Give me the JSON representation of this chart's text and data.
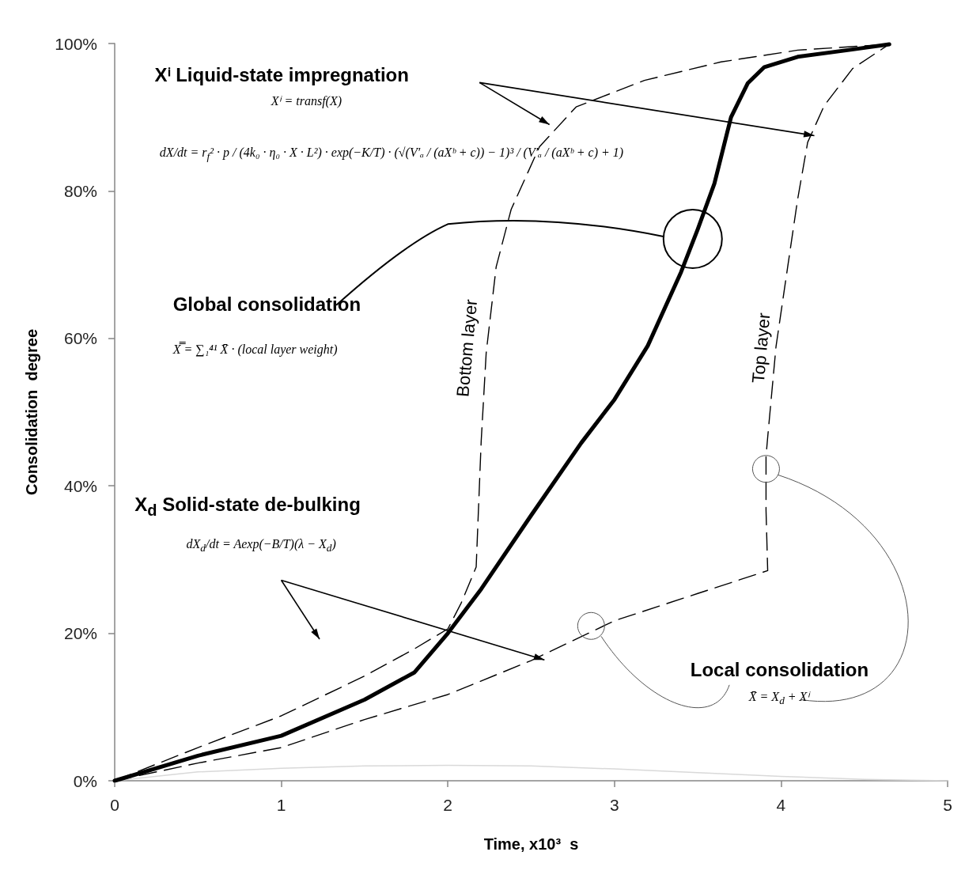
{
  "chart_data": {
    "type": "line",
    "xlabel": "Time, x10³  s",
    "ylabel": "Consolidation  degree",
    "xlim": [
      0,
      5
    ],
    "xticks": [
      0,
      1,
      2,
      3,
      4,
      5
    ],
    "ylim": [
      0,
      100
    ],
    "yticks": [
      {
        "value": 0,
        "label": "0%"
      },
      {
        "value": 20,
        "label": "20%"
      },
      {
        "value": 40,
        "label": "40%"
      },
      {
        "value": 60,
        "label": "60%"
      },
      {
        "value": 80,
        "label": "80%"
      },
      {
        "value": 100,
        "label": "100%"
      }
    ],
    "grid": false,
    "legend": false,
    "marker": "none",
    "series": [
      {
        "color": "#d9d9d9",
        "line_style": "solid",
        "x": [
          0,
          0.5,
          1,
          1.5,
          2,
          2.5,
          3,
          3.5,
          4,
          4.5,
          5
        ],
        "values": [
          0,
          1.2,
          1.7,
          2.0,
          2.1,
          2.0,
          1.6,
          1.1,
          0.6,
          0.2,
          0
        ]
      },
      {
        "name": "Bottom layer",
        "color": "#000000",
        "line_style": "dashed",
        "x": [
          0,
          0.5,
          1,
          1.5,
          1.8,
          2.0,
          2.08,
          2.17,
          2.2,
          2.23,
          2.29,
          2.38,
          2.55,
          2.77,
          3.18,
          3.64,
          4.1,
          4.65
        ],
        "values": [
          0,
          4.5,
          8.8,
          14.2,
          17.9,
          20.6,
          24.1,
          29,
          46,
          58,
          69.7,
          77.5,
          86,
          91.4,
          95,
          97.5,
          99.1,
          99.9
        ]
      },
      {
        "name": "Top layer",
        "color": "#000000",
        "line_style": "dashed",
        "x": [
          0,
          0.5,
          1,
          1.5,
          2,
          2.5,
          3,
          3.5,
          3.92,
          3.91,
          3.91,
          3.92,
          3.97,
          4.04,
          4.1,
          4.16,
          4.26,
          4.43,
          4.65
        ],
        "values": [
          0,
          2.4,
          4.5,
          8.3,
          11.7,
          16.3,
          21.7,
          25.4,
          28.5,
          36.7,
          44,
          46.6,
          58.9,
          69.7,
          78.9,
          86.6,
          91.6,
          96.6,
          99.9
        ]
      },
      {
        "color": "#000000",
        "line_style": "solid",
        "x": [
          0,
          0.5,
          1,
          1.5,
          1.8,
          2,
          2.2,
          2.5,
          2.8,
          3,
          3.2,
          3.4,
          3.5,
          3.6,
          3.7,
          3.8,
          3.9,
          4.1,
          4.4,
          4.65
        ],
        "values": [
          0,
          3.4,
          6.1,
          11,
          14.7,
          20,
          26,
          36,
          45.8,
          51.7,
          59,
          69,
          74.8,
          81,
          90,
          94.6,
          96.8,
          98.2,
          99.1,
          99.9
        ]
      }
    ],
    "annotations": [
      "Xⁱ Liquid-state impregnation",
      "Xⁱ = transf(X)",
      "dX/dt = r$_{f}$² · p / (4k₀ · η₀ · X · L²) · exp(−K/T) · (√(V′ₐ / (aXᵇ + c)) − 1)³ / (V′ₐ / (aXᵇ + c) + 1)",
      "Global consolidation",
      "X̿ = ∑₁⁴¹ X̄ · (local layer weight)",
      "X$_{d}$ Solid-state de-bulking",
      "dX$_{d}$/dt = Aexp(−B/T)(λ − X$_{d}$)",
      "Local consolidation",
      "X̄ = X$_{d}$ + Xⁱ"
    ]
  }
}
